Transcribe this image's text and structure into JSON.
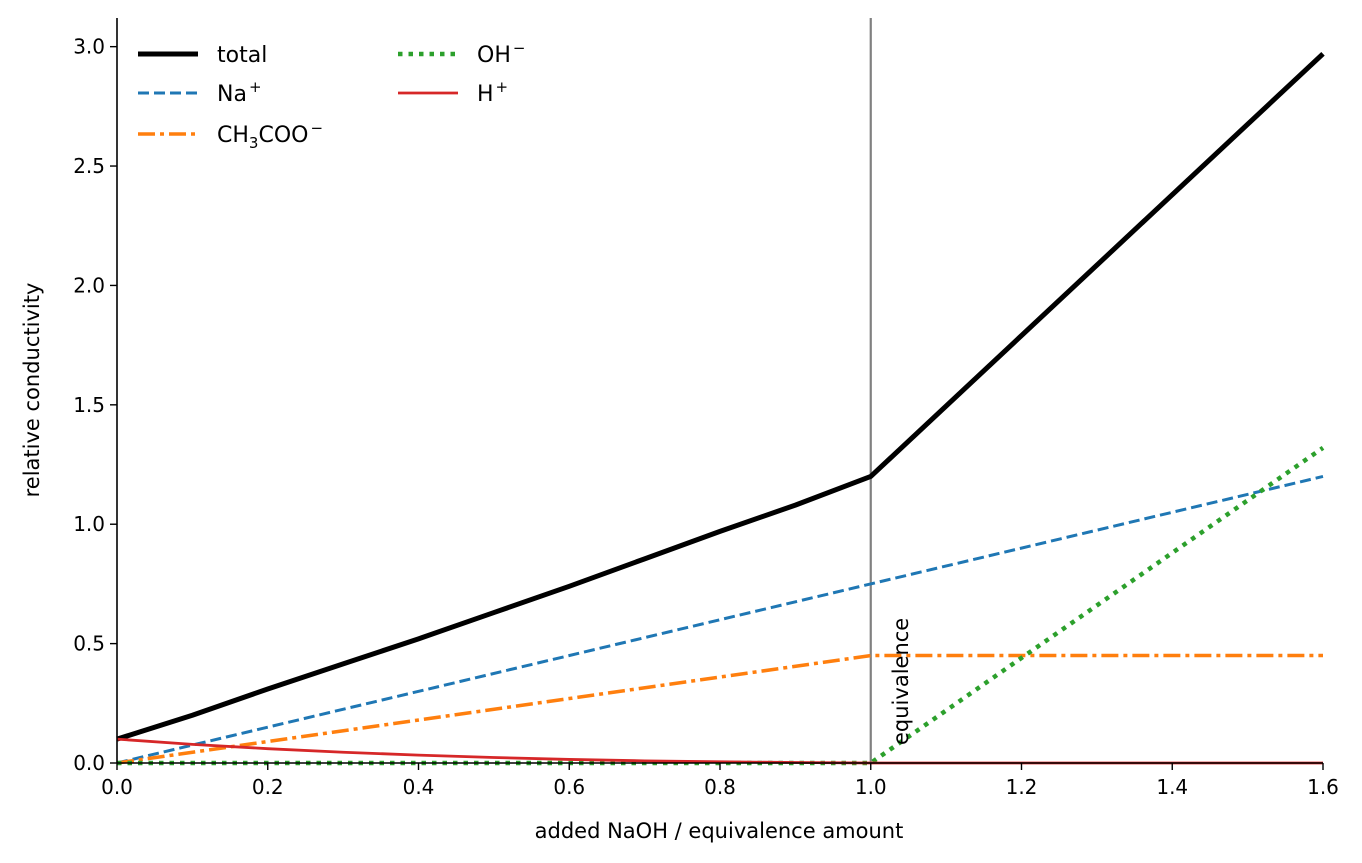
{
  "chart_data": {
    "type": "line",
    "xlabel": "added NaOH / equivalence amount",
    "ylabel": "relative conductivity",
    "xlim": [
      0,
      1.6
    ],
    "ylim": [
      0,
      3.12
    ],
    "x_ticks": [
      0.0,
      0.2,
      0.4,
      0.6,
      0.8,
      1.0,
      1.2,
      1.4,
      1.6
    ],
    "x_tick_labels": [
      "0.0",
      "0.2",
      "0.4",
      "0.6",
      "0.8",
      "1.0",
      "1.2",
      "1.4",
      "1.6"
    ],
    "y_ticks": [
      0.0,
      0.5,
      1.0,
      1.5,
      2.0,
      2.5,
      3.0
    ],
    "y_tick_labels": [
      "0.0",
      "0.5",
      "1.0",
      "1.5",
      "2.0",
      "2.5",
      "3.0"
    ],
    "grid": false,
    "legend_placement": "top-left",
    "legend_columns": 2,
    "series": [
      {
        "name": "total",
        "color": "#000000",
        "style": "solid-thick",
        "x": [
          0.0,
          0.1,
          0.2,
          0.3,
          0.4,
          0.5,
          0.6,
          0.7,
          0.8,
          0.9,
          1.0,
          1.6
        ],
        "y": [
          0.1,
          0.2,
          0.31,
          0.415,
          0.52,
          0.63,
          0.74,
          0.855,
          0.97,
          1.08,
          1.2,
          2.97
        ]
      },
      {
        "name": "Na+",
        "color": "#1f77b4",
        "style": "dashed",
        "x": [
          0.0,
          1.6
        ],
        "y": [
          0.0,
          1.2
        ]
      },
      {
        "name": "CH3COO-",
        "color": "#ff7f0e",
        "style": "dashdot",
        "x": [
          0.0,
          1.0,
          1.6
        ],
        "y": [
          0.0,
          0.45,
          0.45
        ]
      },
      {
        "name": "OH-",
        "color": "#2ca02c",
        "style": "dotted",
        "x": [
          0.0,
          1.0,
          1.6
        ],
        "y": [
          0.0,
          0.0,
          1.32
        ]
      },
      {
        "name": "H+",
        "color": "#d62728",
        "style": "solid-thin",
        "x": [
          0.0,
          0.1,
          0.2,
          0.3,
          0.4,
          0.5,
          0.6,
          0.7,
          0.8,
          0.9,
          1.0,
          1.6
        ],
        "y": [
          0.1,
          0.078,
          0.06,
          0.045,
          0.033,
          0.023,
          0.015,
          0.009,
          0.005,
          0.002,
          0.0,
          0.0
        ]
      }
    ],
    "legend": [
      {
        "base": "total",
        "sub": "",
        "mid": "",
        "sup": ""
      },
      {
        "base": "Na",
        "sub": "",
        "mid": "",
        "sup": "+"
      },
      {
        "base": "CH",
        "sub": "3",
        "mid": "COO",
        "sup": "−"
      },
      {
        "base": "OH",
        "sub": "",
        "mid": "",
        "sup": "−"
      },
      {
        "base": "H",
        "sub": "",
        "mid": "",
        "sup": "+"
      }
    ],
    "annotations": [
      {
        "text": "equivalence",
        "x": 1.0,
        "color": "#808080"
      }
    ]
  }
}
